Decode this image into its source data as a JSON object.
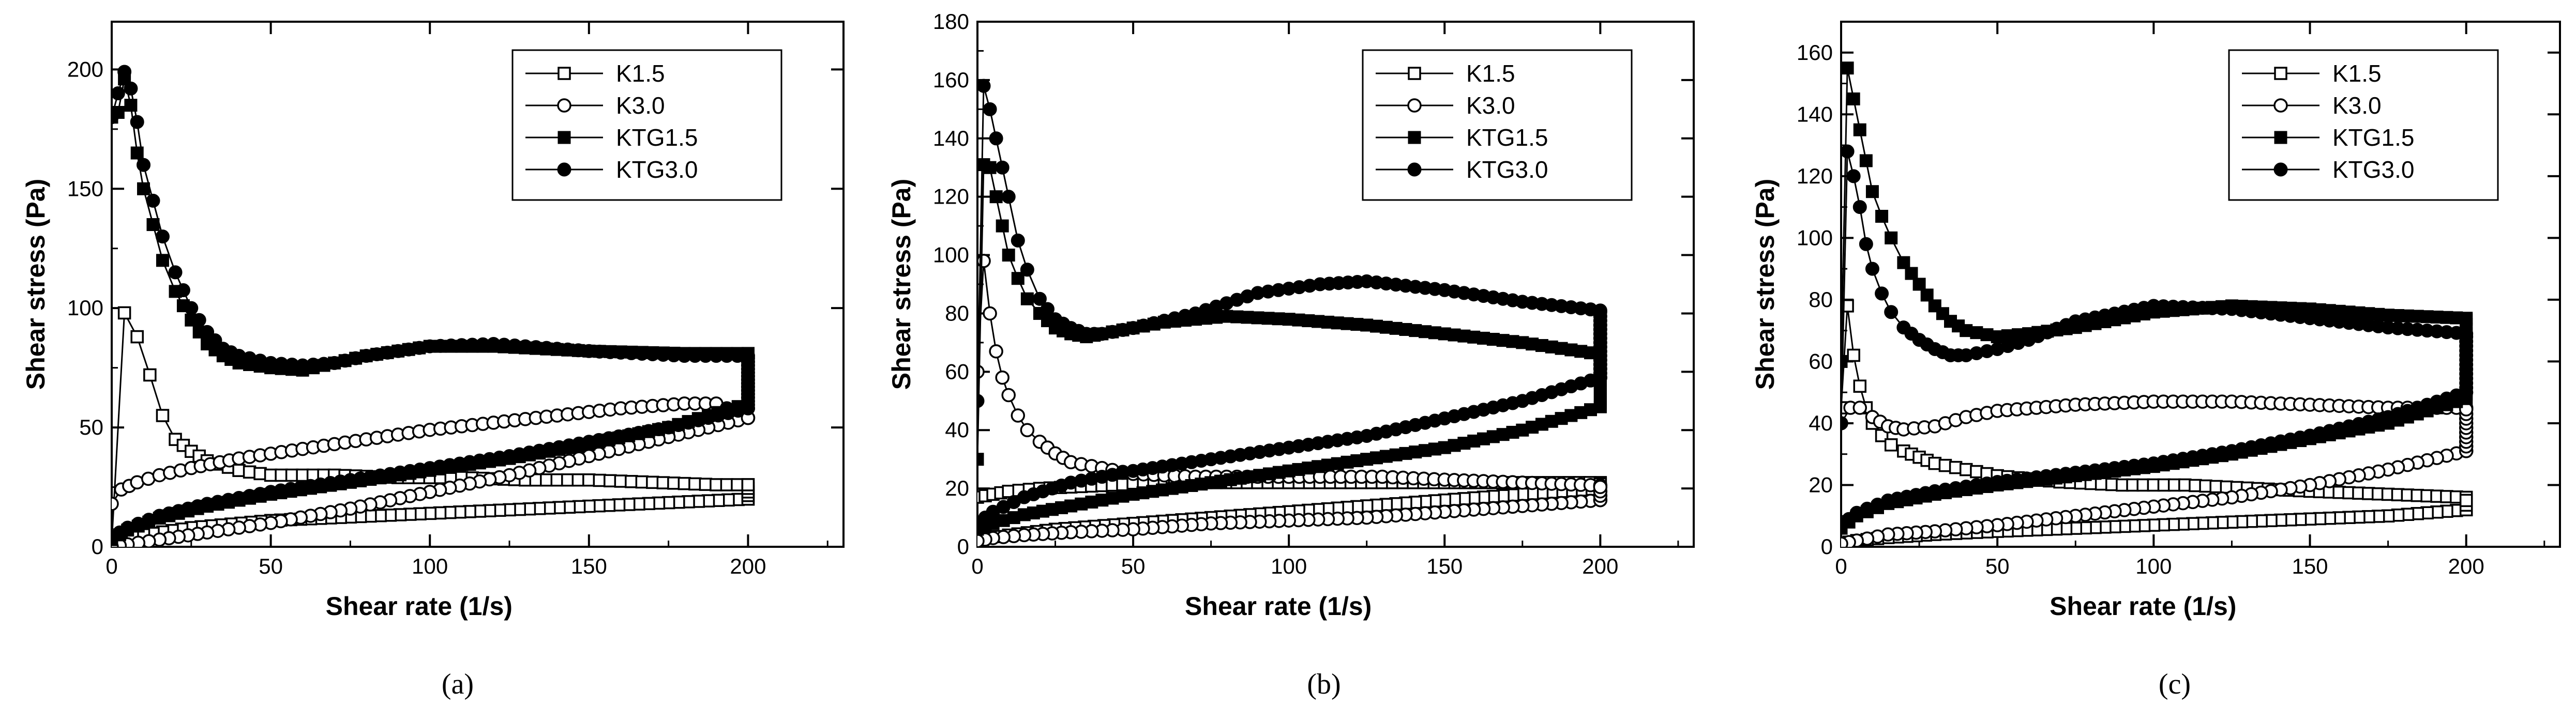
{
  "chart_data": [
    {
      "type": "line",
      "panel_label": "(a)",
      "xlabel": "Shear rate (1/s)",
      "ylabel": "Shear stress (Pa)",
      "xlim": [
        0,
        230
      ],
      "ylim": [
        0,
        220
      ],
      "xticks": [
        0,
        50,
        100,
        150,
        200
      ],
      "yticks": [
        0,
        50,
        100,
        150,
        200
      ],
      "grid": false,
      "legend_position": "top-right",
      "series": [
        {
          "name": "K1.5",
          "marker": "open-square",
          "up": {
            "x": [
              0,
              4,
              8,
              12,
              16,
              20,
              25,
              30,
              40,
              50,
              70,
              90,
              110,
              130,
              150,
              170,
              190,
              200
            ],
            "y": [
              2,
              98,
              88,
              72,
              55,
              45,
              40,
              36,
              32,
              30,
              30,
              29,
              29,
              28,
              28,
              27,
              26,
              26
            ]
          },
          "down": {
            "x": [
              200,
              150,
              100,
              50,
              25,
              10,
              3,
              0
            ],
            "y": [
              20,
              17,
              14,
              11,
              8,
              5,
              3,
              2
            ]
          }
        },
        {
          "name": "K3.0",
          "marker": "open-circle",
          "up": {
            "x": [
              0,
              3,
              8,
              15,
              25,
              40,
              60,
              80,
              100,
              120,
              140,
              160,
              180,
              190,
              200
            ],
            "y": [
              18,
              24,
              27,
              30,
              33,
              37,
              41,
              45,
              49,
              52,
              55,
              58,
              60,
              60,
              54
            ]
          },
          "down": {
            "x": [
              200,
              175,
              150,
              125,
              100,
              75,
              50,
              30,
              15,
              5,
              0
            ],
            "y": [
              54,
              46,
              38,
              30,
              23,
              16,
              10,
              6,
              3,
              1,
              0
            ]
          }
        },
        {
          "name": "KTG1.5",
          "marker": "filled-square",
          "up": {
            "x": [
              0,
              2,
              4,
              6,
              8,
              10,
              13,
              16,
              20,
              25,
              30,
              35,
              40,
              50,
              60,
              80,
              100,
              120,
              150,
              180,
              200
            ],
            "y": [
              180,
              182,
              196,
              185,
              165,
              150,
              135,
              120,
              107,
              95,
              85,
              80,
              77,
              75,
              74,
              80,
              84,
              84,
              82,
              81,
              81
            ]
          },
          "down": {
            "x": [
              200,
              175,
              150,
              125,
              100,
              75,
              50,
              30,
              15,
              5,
              0
            ],
            "y": [
              60,
              50,
              43,
              37,
              32,
              27,
              22,
              17,
              12,
              7,
              3
            ]
          }
        },
        {
          "name": "KTG3.0",
          "marker": "filled-circle",
          "up": {
            "x": [
              0,
              2,
              4,
              6,
              8,
              10,
              13,
              16,
              20,
              25,
              30,
              35,
              40,
              50,
              60,
              70,
              80,
              100,
              120,
              150,
              180,
              200
            ],
            "y": [
              180,
              190,
              199,
              192,
              178,
              160,
              145,
              130,
              115,
              100,
              90,
              83,
              80,
              77,
              76,
              77,
              80,
              84,
              85,
              82,
              80,
              80
            ]
          },
          "down": {
            "x": [
              200,
              175,
              150,
              125,
              100,
              75,
              50,
              30,
              15,
              5,
              0
            ],
            "y": [
              58,
              50,
              44,
              38,
              33,
              28,
              23,
              18,
              13,
              8,
              4
            ]
          }
        }
      ]
    },
    {
      "type": "line",
      "panel_label": "(b)",
      "xlabel": "Shear rate (1/s)",
      "ylabel": "Shear stress (Pa)",
      "xlim": [
        0,
        230
      ],
      "ylim": [
        0,
        180
      ],
      "xticks": [
        0,
        50,
        100,
        150,
        200
      ],
      "yticks": [
        0,
        20,
        40,
        60,
        80,
        100,
        120,
        140,
        160,
        180
      ],
      "grid": false,
      "legend_position": "top-right",
      "series": [
        {
          "name": "K1.5",
          "marker": "open-square",
          "up": {
            "x": [
              0,
              5,
              10,
              20,
              40,
              60,
              80,
              100,
              120,
              140,
              160,
              180,
              200
            ],
            "y": [
              17,
              18,
              19,
              20,
              21,
              22,
              22,
              22,
              22,
              22,
              22,
              22,
              22
            ]
          },
          "down": {
            "x": [
              200,
              175,
              150,
              125,
              100,
              75,
              50,
              25,
              10,
              3,
              0
            ],
            "y": [
              20,
              18,
              16,
              14,
              12,
              10,
              8,
              6,
              4,
              3,
              2
            ]
          }
        },
        {
          "name": "K3.0",
          "marker": "open-circle",
          "up": {
            "x": [
              0,
              2,
              4,
              6,
              8,
              10,
              13,
              16,
              20,
              25,
              30,
              40,
              50,
              70,
              90,
              110,
              130,
              150,
              175,
              200
            ],
            "y": [
              60,
              98,
              80,
              67,
              58,
              52,
              45,
              40,
              36,
              32,
              29,
              27,
              25,
              24,
              24,
              24,
              24,
              23,
              22,
              21
            ]
          },
          "down": {
            "x": [
              200,
              175,
              150,
              125,
              100,
              75,
              50,
              30,
              15,
              5,
              0
            ],
            "y": [
              16,
              14,
              12,
              10,
              9,
              8,
              6,
              5,
              4,
              3,
              2
            ]
          }
        },
        {
          "name": "KTG1.5",
          "marker": "filled-square",
          "up": {
            "x": [
              0,
              2,
              4,
              6,
              8,
              10,
              13,
              16,
              20,
              25,
              30,
              35,
              40,
              50,
              60,
              80,
              100,
              125,
              150,
              175,
              200
            ],
            "y": [
              30,
              131,
              130,
              120,
              110,
              100,
              92,
              85,
              80,
              75,
              73,
              72,
              73,
              75,
              77,
              79,
              78,
              76,
              73,
              70,
              66
            ]
          },
          "down": {
            "x": [
              200,
              175,
              150,
              125,
              100,
              75,
              50,
              30,
              15,
              5,
              0
            ],
            "y": [
              48,
              40,
              34,
              30,
              26,
              22,
              18,
              14,
              11,
              8,
              6
            ]
          }
        },
        {
          "name": "KTG3.0",
          "marker": "filled-circle",
          "up": {
            "x": [
              0,
              2,
              4,
              6,
              8,
              10,
              13,
              16,
              20,
              25,
              30,
              35,
              40,
              50,
              70,
              90,
              110,
              125,
              150,
              175,
              200
            ],
            "y": [
              50,
              158,
              150,
              140,
              130,
              120,
              105,
              95,
              85,
              78,
              75,
              73,
              73,
              75,
              80,
              87,
              90,
              91,
              88,
              84,
              81
            ]
          },
          "down": {
            "x": [
              200,
              175,
              150,
              125,
              100,
              75,
              50,
              30,
              15,
              5,
              0
            ],
            "y": [
              58,
              50,
              44,
              38,
              34,
              30,
              26,
              22,
              17,
              12,
              8
            ]
          }
        }
      ]
    },
    {
      "type": "line",
      "panel_label": "(c)",
      "xlabel": "Shear rate (1/s)",
      "ylabel": "Shear stress (Pa)",
      "xlim": [
        0,
        230
      ],
      "ylim": [
        0,
        170
      ],
      "xticks": [
        0,
        50,
        100,
        150,
        200
      ],
      "yticks": [
        0,
        20,
        40,
        60,
        80,
        100,
        120,
        140,
        160
      ],
      "grid": false,
      "legend_position": "top-right",
      "series": [
        {
          "name": "K1.5",
          "marker": "open-square",
          "up": {
            "x": [
              0,
              2,
              4,
              6,
              8,
              10,
              13,
              16,
              20,
              25,
              30,
              40,
              50,
              70,
              90,
              110,
              130,
              150,
              175,
              200
            ],
            "y": [
              45,
              78,
              62,
              52,
              45,
              40,
              36,
              33,
              31,
              29,
              27,
              25,
              23,
              21,
              20,
              20,
              19,
              18,
              17,
              16
            ]
          },
          "down": {
            "x": [
              200,
              175,
              150,
              125,
              100,
              75,
              50,
              30,
              15,
              5,
              0
            ],
            "y": [
              12,
              10,
              9,
              8,
              7,
              6,
              5,
              4,
              3,
              2,
              1
            ]
          }
        },
        {
          "name": "K3.0",
          "marker": "open-circle",
          "up": {
            "x": [
              0,
              3,
              6,
              10,
              15,
              20,
              30,
              40,
              50,
              75,
              100,
              125,
              150,
              175,
              200
            ],
            "y": [
              40,
              45,
              45,
              42,
              39,
              38,
              39,
              42,
              44,
              46,
              47,
              47,
              46,
              45,
              45
            ]
          },
          "down": {
            "x": [
              200,
              175,
              150,
              125,
              100,
              75,
              50,
              30,
              15,
              5,
              0
            ],
            "y": [
              31,
              25,
              20,
              16,
              13,
              10,
              7,
              5,
              4,
              2,
              1
            ]
          }
        },
        {
          "name": "KTG1.5",
          "marker": "filled-square",
          "up": {
            "x": [
              0,
              2,
              4,
              6,
              8,
              10,
              13,
              16,
              20,
              25,
              30,
              35,
              40,
              50,
              60,
              75,
              100,
              125,
              150,
              175,
              200
            ],
            "y": [
              60,
              155,
              145,
              135,
              125,
              115,
              107,
              100,
              92,
              85,
              78,
              73,
              70,
              68,
              69,
              71,
              76,
              78,
              77,
              75,
              74
            ]
          },
          "down": {
            "x": [
              200,
              175,
              150,
              125,
              100,
              75,
              50,
              30,
              15,
              5,
              0
            ],
            "y": [
              48,
              40,
              35,
              30,
              26,
              23,
              20,
              17,
              14,
              10,
              6
            ]
          }
        },
        {
          "name": "KTG3.0",
          "marker": "filled-circle",
          "up": {
            "x": [
              0,
              2,
              4,
              6,
              8,
              10,
              13,
              16,
              20,
              25,
              30,
              35,
              40,
              50,
              60,
              75,
              100,
              125,
              150,
              175,
              200
            ],
            "y": [
              40,
              128,
              120,
              110,
              98,
              90,
              82,
              76,
              71,
              67,
              64,
              62,
              62,
              64,
              67,
              73,
              78,
              77,
              74,
              71,
              69
            ]
          },
          "down": {
            "x": [
              200,
              175,
              150,
              125,
              100,
              75,
              50,
              30,
              15,
              5,
              0
            ],
            "y": [
              50,
              42,
              36,
              31,
              27,
              24,
              21,
              18,
              15,
              11,
              7
            ]
          }
        }
      ]
    }
  ]
}
